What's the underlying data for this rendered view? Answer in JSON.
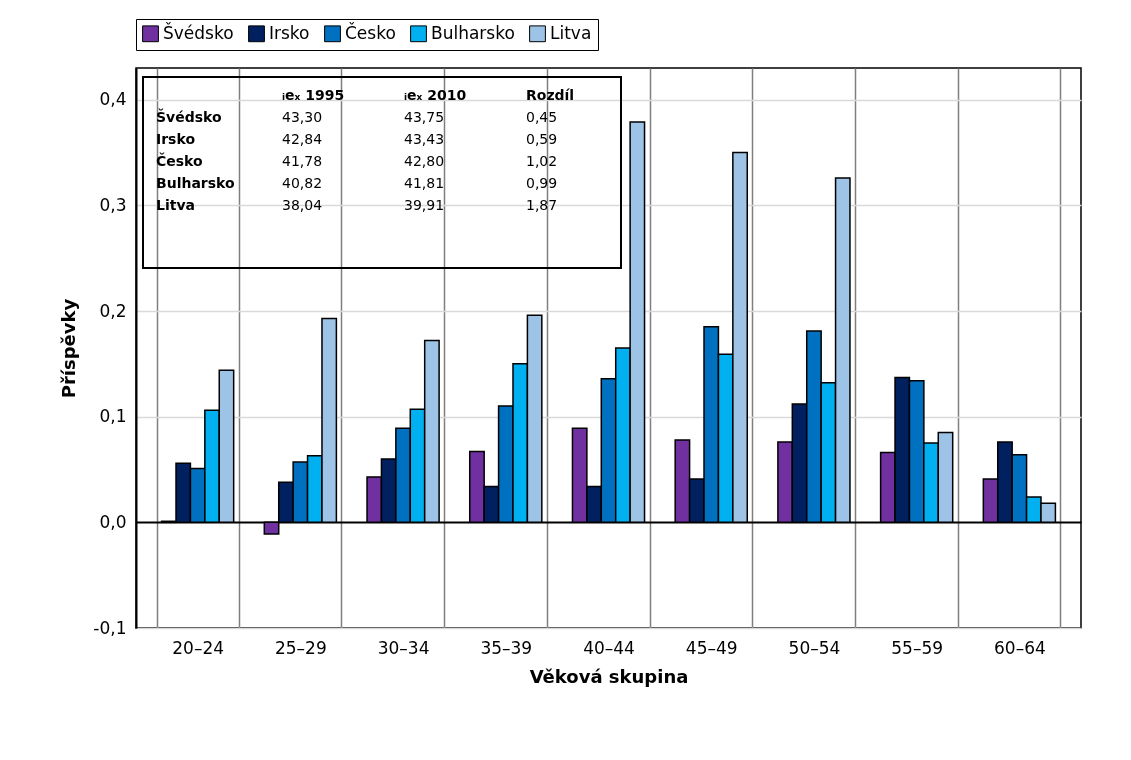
{
  "chart_data": {
    "type": "bar",
    "xlabel": "Věková skupina",
    "ylabel": "Příspěvky",
    "categories": [
      "20–24",
      "25–29",
      "30–34",
      "35–39",
      "40–44",
      "45–49",
      "50–54",
      "55–59",
      "60–64"
    ],
    "series": [
      {
        "name": "Švédsko",
        "color": "#7030a0",
        "values": [
          0.001,
          -0.011,
          0.043,
          0.067,
          0.089,
          0.078,
          0.076,
          0.066,
          0.041
        ]
      },
      {
        "name": "Irsko",
        "color": "#002060",
        "values": [
          0.056,
          0.038,
          0.06,
          0.034,
          0.034,
          0.041,
          0.112,
          0.137,
          0.076
        ]
      },
      {
        "name": "Česko",
        "color": "#0070c0",
        "values": [
          0.051,
          0.057,
          0.089,
          0.11,
          0.136,
          0.185,
          0.181,
          0.134,
          0.064
        ]
      },
      {
        "name": "Bulharsko",
        "color": "#00b0f0",
        "values": [
          0.106,
          0.063,
          0.107,
          0.15,
          0.165,
          0.159,
          0.132,
          0.075,
          0.024
        ]
      },
      {
        "name": "Litva",
        "color": "#9dc3e6",
        "values": [
          0.144,
          0.193,
          0.172,
          0.196,
          0.379,
          0.35,
          0.326,
          0.085,
          0.018
        ]
      }
    ],
    "ylim": [
      -0.1,
      0.43
    ],
    "yticks": [
      {
        "value": -0.1,
        "label": "-0,1"
      },
      {
        "value": 0,
        "label": "0,0"
      },
      {
        "value": 0.1,
        "label": "0,1"
      },
      {
        "value": 0.2,
        "label": "0,2"
      },
      {
        "value": 0.3,
        "label": "0,3"
      },
      {
        "value": 0.4,
        "label": "0,4"
      }
    ],
    "grid": true,
    "legend": "top",
    "annotations": [
      "\tᵢeₓ 1995\tᵢeₓ 2010\tRozdíl",
      "Švédsko\t43,30\t43,75\t0,45",
      "Irsko\t42,84\t43,43\t0,59",
      "Česko\t41,78\t42,80\t1,02",
      "Bulharsko\t40,82\t41,81\t0,99",
      "Litva\t38,04\t39,91\t1,87"
    ]
  }
}
